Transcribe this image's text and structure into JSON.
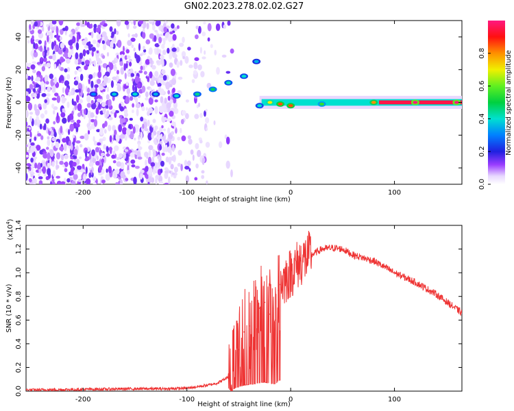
{
  "title": "GN02.2023.278.02.02.G27",
  "chart_data": [
    {
      "type": "heatmap",
      "xlabel": "Height of straight line (km)",
      "ylabel": "Frequency (Hz)",
      "xlim": [
        -255,
        165
      ],
      "ylim": [
        -50,
        50
      ],
      "x_ticks": [
        -200,
        -100,
        0,
        100
      ],
      "y_ticks": [
        -40,
        -20,
        0,
        20,
        40
      ],
      "colorbar": {
        "label": "Normalized spectral amplitude",
        "range": [
          0,
          1
        ],
        "ticks": [
          0.0,
          0.2,
          0.4,
          0.6,
          0.8
        ],
        "tick_labels": [
          "0.0",
          "0.2",
          "0.4",
          "0.6",
          "0.8"
        ]
      },
      "ridge": [
        {
          "x": -190,
          "f": 5,
          "amp": 0.3
        },
        {
          "x": -170,
          "f": 5,
          "amp": 0.38
        },
        {
          "x": -150,
          "f": 5,
          "amp": 0.4
        },
        {
          "x": -130,
          "f": 5,
          "amp": 0.35
        },
        {
          "x": -110,
          "f": 4,
          "amp": 0.4
        },
        {
          "x": -90,
          "f": 5,
          "amp": 0.45
        },
        {
          "x": -75,
          "f": 8,
          "amp": 0.48
        },
        {
          "x": -60,
          "f": 12,
          "amp": 0.42
        },
        {
          "x": -45,
          "f": 16,
          "amp": 0.4
        },
        {
          "x": -33,
          "f": 25,
          "amp": 0.35
        },
        {
          "x": -30,
          "f": -2,
          "amp": 0.4
        },
        {
          "x": -20,
          "f": 0,
          "amp": 0.7
        },
        {
          "x": -10,
          "f": -1,
          "amp": 0.85
        },
        {
          "x": 0,
          "f": -2,
          "amp": 0.85
        },
        {
          "x": 30,
          "f": -1,
          "amp": 0.55
        },
        {
          "x": 80,
          "f": 0,
          "amp": 0.8
        },
        {
          "x": 120,
          "f": 0,
          "amp": 1.0
        },
        {
          "x": 160,
          "f": 0,
          "amp": 1.0
        }
      ]
    },
    {
      "type": "line",
      "xlabel": "Height of straight line (km)",
      "ylabel": "SNR (10 * v/v)",
      "y_multiplier": "(x10",
      "y_multiplier_exp": "4",
      "xlim": [
        -255,
        165
      ],
      "ylim": [
        0,
        1.4
      ],
      "x_ticks": [
        -200,
        -100,
        0,
        100
      ],
      "y_ticks": [
        0.0,
        0.2,
        0.4,
        0.6,
        0.8,
        1.0,
        1.2,
        1.4
      ],
      "y_tick_labels": [
        "0.0",
        "0.2",
        "0.4",
        "0.6",
        "0.8",
        "1.0",
        "1.2",
        "1.4"
      ],
      "series": [
        {
          "color": "#ee3333",
          "x": [
            -255,
            -200,
            -150,
            -120,
            -100,
            -80,
            -70,
            -60,
            -55,
            -50,
            -45,
            -40,
            -35,
            -30,
            -25,
            -20,
            -15,
            -12,
            -10,
            -5,
            0,
            10,
            20,
            30,
            40,
            50,
            60,
            80,
            100,
            120,
            140,
            165
          ],
          "y": [
            0.01,
            0.015,
            0.02,
            0.02,
            0.025,
            0.05,
            0.07,
            0.12,
            0.2,
            0.35,
            0.5,
            0.55,
            0.6,
            0.7,
            0.75,
            0.65,
            0.6,
            0.85,
            0.9,
            0.95,
            1.0,
            1.1,
            1.15,
            1.2,
            1.21,
            1.2,
            1.15,
            1.1,
            1.0,
            0.92,
            0.82,
            0.66
          ]
        }
      ]
    }
  ]
}
